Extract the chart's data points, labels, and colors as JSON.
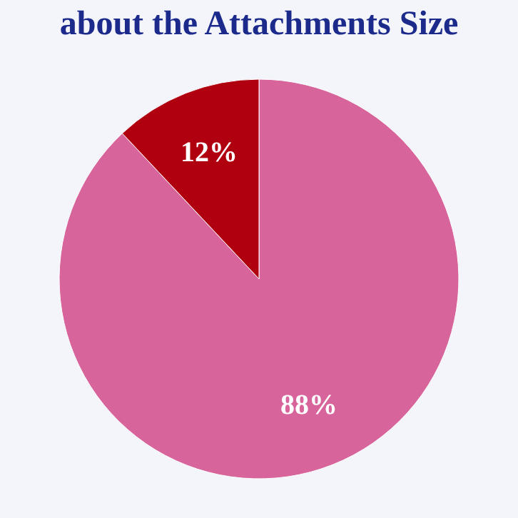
{
  "chart_data": {
    "type": "pie",
    "title": "about the Attachments Size",
    "categories": [
      null,
      null
    ],
    "values": [
      88,
      12
    ],
    "colors": [
      "#d8649c",
      "#b0000f"
    ],
    "value_labels": [
      "88%",
      "12%"
    ]
  }
}
